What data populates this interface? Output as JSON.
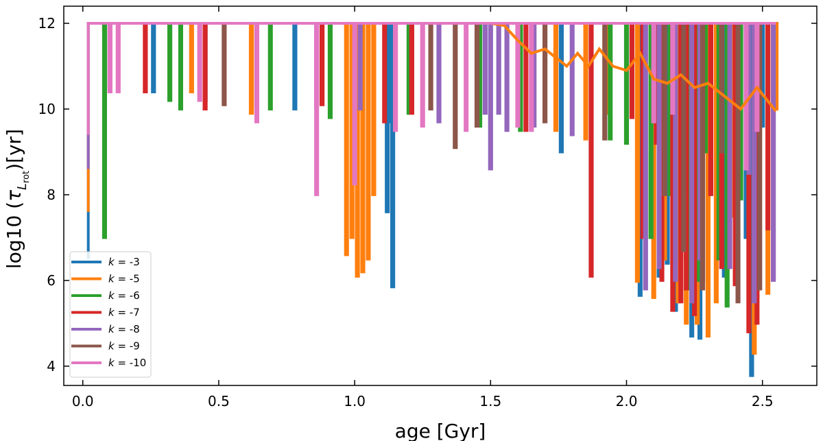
{
  "chart_data": {
    "type": "line",
    "xlabel": "age [Gyr]",
    "ylabel": {
      "prefix": "log10 (",
      "tau": "τ",
      "sub": "L",
      "subsub": "rot",
      "suffix": ")[yr]"
    },
    "xlim": [
      -0.07,
      2.7
    ],
    "ylim": [
      3.55,
      12.4
    ],
    "xticks": [
      0.0,
      0.5,
      1.0,
      1.5,
      2.0,
      2.5
    ],
    "xtick_labels": [
      "0.0",
      "0.5",
      "1.0",
      "1.5",
      "2.0",
      "2.5"
    ],
    "yticks": [
      4,
      6,
      8,
      10,
      12
    ],
    "ytick_labels": [
      "4",
      "6",
      "8",
      "10",
      "12"
    ],
    "legend_position": "bottom-left",
    "series": [
      {
        "name": "k = -3",
        "label_k": "k",
        "label_val": " = -3",
        "color": "#1f77b4",
        "base": 12.0,
        "dips": [
          [
            0.02,
            6.5
          ],
          [
            0.26,
            10.4
          ],
          [
            0.45,
            10.2
          ],
          [
            0.78,
            10.0
          ],
          [
            1.12,
            7.6
          ],
          [
            1.13,
            9.7
          ],
          [
            1.14,
            5.85
          ],
          [
            1.76,
            9.0
          ],
          [
            2.05,
            5.65
          ],
          [
            2.12,
            6.1
          ],
          [
            2.15,
            6.4
          ],
          [
            2.18,
            5.3
          ],
          [
            2.21,
            9.5
          ],
          [
            2.24,
            4.7
          ],
          [
            2.27,
            4.65
          ],
          [
            2.3,
            6.0
          ],
          [
            2.36,
            6.1
          ],
          [
            2.4,
            10.0
          ],
          [
            2.44,
            7.0
          ],
          [
            2.46,
            3.78
          ],
          [
            2.5,
            9.6
          ]
        ]
      },
      {
        "name": "k = -5",
        "label_k": "k",
        "label_val": " = -5",
        "color": "#ff7f0e",
        "base": 12.0,
        "dips": [
          [
            0.02,
            7.6
          ],
          [
            0.08,
            11.8
          ],
          [
            0.4,
            10.4
          ],
          [
            0.62,
            9.9
          ],
          [
            0.97,
            6.6
          ],
          [
            0.99,
            7.0
          ],
          [
            1.01,
            6.1
          ],
          [
            1.03,
            6.2
          ],
          [
            1.05,
            6.5
          ],
          [
            1.07,
            8.0
          ],
          [
            1.74,
            9.5
          ],
          [
            1.85,
            9.3
          ],
          [
            1.93,
            9.9
          ],
          [
            2.04,
            5.98
          ],
          [
            2.1,
            5.6
          ],
          [
            2.14,
            6.5
          ],
          [
            2.19,
            5.5
          ],
          [
            2.22,
            5.0
          ],
          [
            2.26,
            5.0
          ],
          [
            2.3,
            4.7
          ],
          [
            2.33,
            5.5
          ],
          [
            2.39,
            7.5
          ],
          [
            2.47,
            4.3
          ],
          [
            2.52,
            5.7
          ],
          [
            2.55,
            10.0
          ]
        ]
      },
      {
        "name": "k = -6",
        "label_k": "k",
        "label_val": " = -6",
        "color": "#2ca02c",
        "base": 12.0,
        "dips": [
          [
            0.08,
            7.0
          ],
          [
            0.1,
            10.5
          ],
          [
            0.32,
            10.2
          ],
          [
            0.36,
            10.0
          ],
          [
            0.69,
            10.0
          ],
          [
            0.91,
            9.8
          ],
          [
            1.2,
            9.9
          ],
          [
            1.46,
            9.6
          ],
          [
            1.61,
            9.5
          ],
          [
            1.94,
            9.3
          ],
          [
            2.0,
            9.2
          ],
          [
            2.09,
            7.0
          ],
          [
            2.16,
            8.0
          ],
          [
            2.2,
            6.5
          ],
          [
            2.23,
            5.8
          ],
          [
            2.26,
            6.0
          ],
          [
            2.29,
            9.0
          ],
          [
            2.34,
            6.5
          ],
          [
            2.37,
            5.4
          ],
          [
            2.42,
            7.9
          ],
          [
            2.48,
            5.6
          ]
        ]
      },
      {
        "name": "k = -7",
        "label_k": "k",
        "label_val": " = -7",
        "color": "#d62728",
        "base": 12.0,
        "dips": [
          [
            0.23,
            10.4
          ],
          [
            0.45,
            10.0
          ],
          [
            0.88,
            10.1
          ],
          [
            1.11,
            9.7
          ],
          [
            1.21,
            9.9
          ],
          [
            1.63,
            9.5
          ],
          [
            1.87,
            6.1
          ],
          [
            2.02,
            9.8
          ],
          [
            2.06,
            7.0
          ],
          [
            2.11,
            9.2
          ],
          [
            2.13,
            6.0
          ],
          [
            2.17,
            5.3
          ],
          [
            2.2,
            5.5
          ],
          [
            2.22,
            5.8
          ],
          [
            2.25,
            5.2
          ],
          [
            2.31,
            8.0
          ],
          [
            2.35,
            6.3
          ],
          [
            2.4,
            5.9
          ],
          [
            2.45,
            4.8
          ],
          [
            2.48,
            5.0
          ],
          [
            2.52,
            7.2
          ]
        ]
      },
      {
        "name": "k = -8",
        "label_k": "k",
        "label_val": " = -8",
        "color": "#9467bd",
        "base": 12.0,
        "dips": [
          [
            0.02,
            8.6
          ],
          [
            0.86,
            10.1
          ],
          [
            1.02,
            10.0
          ],
          [
            1.31,
            9.7
          ],
          [
            1.48,
            9.9
          ],
          [
            1.5,
            8.6
          ],
          [
            1.53,
            9.9
          ],
          [
            1.56,
            9.5
          ],
          [
            1.66,
            9.6
          ],
          [
            1.8,
            9.4
          ],
          [
            2.07,
            5.8
          ],
          [
            2.12,
            6.3
          ],
          [
            2.18,
            6.0
          ],
          [
            2.24,
            5.5
          ],
          [
            2.27,
            6.5
          ],
          [
            2.38,
            6.3
          ],
          [
            2.45,
            8.5
          ],
          [
            2.47,
            5.5
          ],
          [
            2.54,
            6.0
          ]
        ]
      },
      {
        "name": "k = -9",
        "label_k": "k",
        "label_val": " = -9",
        "color": "#8c564b",
        "base": 12.0,
        "dips": [
          [
            0.52,
            10.1
          ],
          [
            0.64,
            10.0
          ],
          [
            1.28,
            10.0
          ],
          [
            1.37,
            9.1
          ],
          [
            1.45,
            9.6
          ],
          [
            1.7,
            9.7
          ],
          [
            1.92,
            9.3
          ],
          [
            2.14,
            8.0
          ],
          [
            2.21,
            6.7
          ],
          [
            2.28,
            5.8
          ],
          [
            2.35,
            9.0
          ],
          [
            2.41,
            5.5
          ],
          [
            2.49,
            5.8
          ]
        ]
      },
      {
        "name": "k = -10",
        "label_k": "k",
        "label_val": " = -10",
        "color": "#e377c2",
        "base": 12.0,
        "dips": [
          [
            0.02,
            9.4
          ],
          [
            0.1,
            10.4
          ],
          [
            0.13,
            10.4
          ],
          [
            0.43,
            10.2
          ],
          [
            0.64,
            9.7
          ],
          [
            0.86,
            8.0
          ],
          [
            1.0,
            8.25
          ],
          [
            1.15,
            9.5
          ],
          [
            1.25,
            9.6
          ],
          [
            1.41,
            9.5
          ],
          [
            1.6,
            9.6
          ],
          [
            1.65,
            9.5
          ],
          [
            2.1,
            9.7
          ],
          [
            2.17,
            9.9
          ],
          [
            2.44,
            8.6
          ],
          [
            2.48,
            9.5
          ]
        ]
      }
    ],
    "upper_envelope": {
      "color": "#ff7f0e",
      "points": [
        [
          1.5,
          12.0
        ],
        [
          1.55,
          11.95
        ],
        [
          1.6,
          11.6
        ],
        [
          1.65,
          11.3
        ],
        [
          1.7,
          11.4
        ],
        [
          1.74,
          11.2
        ],
        [
          1.78,
          11.0
        ],
        [
          1.82,
          11.3
        ],
        [
          1.86,
          11.0
        ],
        [
          1.9,
          11.4
        ],
        [
          1.95,
          11.0
        ],
        [
          2.0,
          10.9
        ],
        [
          2.05,
          11.3
        ],
        [
          2.1,
          10.7
        ],
        [
          2.15,
          10.6
        ],
        [
          2.2,
          10.8
        ],
        [
          2.25,
          10.5
        ],
        [
          2.3,
          10.6
        ],
        [
          2.36,
          10.3
        ],
        [
          2.42,
          10.0
        ],
        [
          2.48,
          10.5
        ],
        [
          2.55,
          9.95
        ]
      ]
    }
  }
}
